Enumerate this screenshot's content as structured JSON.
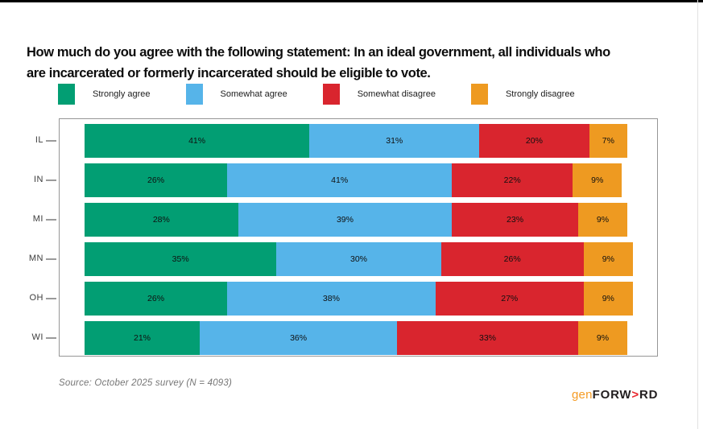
{
  "title": {
    "line1": "How much do you agree with the following statement: In an ideal government, all individuals who",
    "line2": "are incarcerated or formerly incarcerated should be eligible to vote."
  },
  "legend": [
    {
      "label": "Strongly agree",
      "color": "#029E73"
    },
    {
      "label": "Somewhat agree",
      "color": "#56B4E9"
    },
    {
      "label": "Somewhat disagree",
      "color": "#D9252E"
    },
    {
      "label": "Strongly disagree",
      "color": "#EE9A21"
    }
  ],
  "chart_data": {
    "type": "bar",
    "orientation": "horizontal",
    "stacked": true,
    "categories": [
      "IL",
      "IN",
      "MI",
      "MN",
      "OH",
      "WI"
    ],
    "series": [
      {
        "name": "Strongly agree",
        "color": "#029E73",
        "values": [
          41,
          26,
          28,
          35,
          26,
          21
        ]
      },
      {
        "name": "Somewhat agree",
        "color": "#56B4E9",
        "values": [
          31,
          41,
          39,
          30,
          38,
          36
        ]
      },
      {
        "name": "Somewhat disagree",
        "color": "#D9252E",
        "values": [
          20,
          22,
          23,
          26,
          27,
          33
        ]
      },
      {
        "name": "Strongly disagree",
        "color": "#EE9A21",
        "values": [
          7,
          9,
          9,
          9,
          9,
          9
        ]
      }
    ],
    "value_suffix": "%",
    "xlim": [
      0,
      100
    ],
    "grid": false,
    "legend_position": "top"
  },
  "source": "Source: October 2025 survey (N = 4093)",
  "logo": {
    "prefix": "gen",
    "word_start": "FORW",
    "arrow": ">",
    "word_end": "RD",
    "prefix_color": "#F59B23",
    "arrow_color": "#E8262D",
    "text_color": "#231F20"
  },
  "colors": {
    "top_bar": "#000000",
    "plot_border": "#969696",
    "tick": "#9a9a9a"
  }
}
